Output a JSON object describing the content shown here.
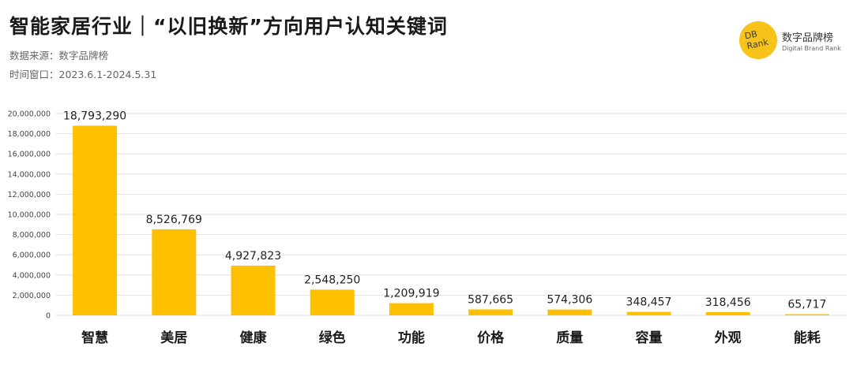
{
  "header": {
    "title": "智能家居行业｜“以旧换新”方向用户认知关键词",
    "source": "数据来源：数字品牌榜",
    "time_window": "时间窗口：2023.6.1-2024.5.31"
  },
  "logo": {
    "mono_line1": "DB",
    "mono_line2": "Rank",
    "name": "数字品牌榜",
    "subtitle": "Digital Brand Rank",
    "color": "#F7C21A"
  },
  "chart_data": {
    "type": "bar",
    "categories": [
      "智慧",
      "美居",
      "健康",
      "绿色",
      "功能",
      "价格",
      "质量",
      "容量",
      "外观",
      "能耗"
    ],
    "values": [
      18793290,
      8526769,
      4927823,
      2548250,
      1209919,
      587665,
      574306,
      348457,
      318456,
      65717
    ],
    "value_labels": [
      "18,793,290",
      "8,526,769",
      "4,927,823",
      "2,548,250",
      "1,209,919",
      "587,665",
      "574,306",
      "348,457",
      "318,456",
      "65,717"
    ],
    "ylim": [
      0,
      20000000
    ],
    "yticks": [
      0,
      2000000,
      4000000,
      6000000,
      8000000,
      10000000,
      12000000,
      14000000,
      16000000,
      18000000,
      20000000
    ],
    "ytick_labels": [
      "0",
      "2,000,000",
      "4,000,000",
      "6,000,000",
      "8,000,000",
      "10,000,000",
      "12,000,000",
      "14,000,000",
      "16,000,000",
      "18,000,000",
      "20,000,000"
    ],
    "grid": true,
    "bar_color": "#FFC000",
    "grid_color": "#E2E2E2"
  }
}
